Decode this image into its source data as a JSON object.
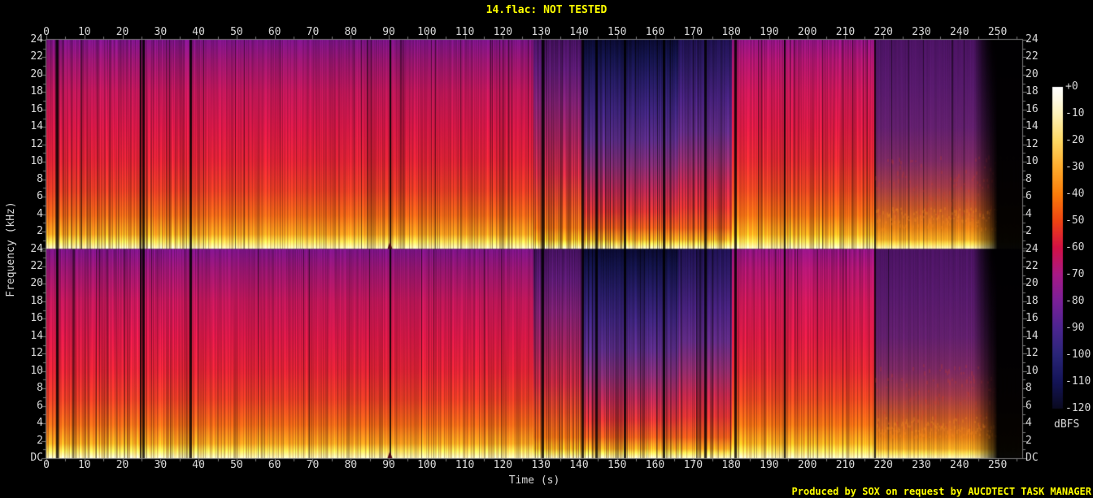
{
  "header": {
    "title": "14.flac: NOT TESTED"
  },
  "footer": {
    "attribution": "Produced by SOX on request by AUCDTECT TASK MANAGER"
  },
  "colors": {
    "background": "#000000",
    "title_text": "#ffff00",
    "attribution_text": "#ffff00",
    "axis_text": "#d8d8d8",
    "axis_line": "#787878"
  },
  "chart_data": {
    "type": "heatmap",
    "subtype": "audio-spectrogram-dual-channel",
    "title": "14.flac: NOT TESTED",
    "xlabel": "Time (s)",
    "ylabel": "Frequency (kHz)",
    "colorbar_unit": "dBFS",
    "channels": 2,
    "x_range_s": [
      0,
      256.5
    ],
    "x_tick_step_s": 10,
    "x_minor_tick_step_s": 5,
    "x_ticks": [
      0,
      10,
      20,
      30,
      40,
      50,
      60,
      70,
      80,
      90,
      100,
      110,
      120,
      130,
      140,
      150,
      160,
      170,
      180,
      190,
      200,
      210,
      220,
      230,
      240,
      250
    ],
    "y_range_khz": [
      0,
      24
    ],
    "y_ticks": [
      "24",
      "22",
      "20",
      "18",
      "16",
      "14",
      "12",
      "10",
      "8",
      "6",
      "4",
      "2",
      "DC"
    ],
    "colorbar_ticks": [
      "+0",
      "-10",
      "-20",
      "-30",
      "-40",
      "-50",
      "-60",
      "-70",
      "-80",
      "-90",
      "-100",
      "-110",
      "-120"
    ],
    "colorbar_gradient": [
      {
        "at": 0.0,
        "color": "#ffffff"
      },
      {
        "at": 0.042,
        "color": "#fffae2"
      },
      {
        "at": 0.083,
        "color": "#fff3bb"
      },
      {
        "at": 0.167,
        "color": "#ffd964"
      },
      {
        "at": 0.25,
        "color": "#ffac2d"
      },
      {
        "at": 0.333,
        "color": "#fb7d0a"
      },
      {
        "at": 0.417,
        "color": "#ef4412"
      },
      {
        "at": 0.5,
        "color": "#d31145"
      },
      {
        "at": 0.583,
        "color": "#a81a86"
      },
      {
        "at": 0.667,
        "color": "#7a2099"
      },
      {
        "at": 0.75,
        "color": "#4c2590"
      },
      {
        "at": 0.833,
        "color": "#2a2578"
      },
      {
        "at": 0.917,
        "color": "#141457"
      },
      {
        "at": 1.0,
        "color": "#0a0a20"
      }
    ],
    "profiles": {
      "hot": [
        [
          0,
          "#7a1486"
        ],
        [
          0.1,
          "#96166f"
        ],
        [
          0.25,
          "#bb1757"
        ],
        [
          0.42,
          "#d01845"
        ],
        [
          0.58,
          "#d92234"
        ],
        [
          0.72,
          "#de3b24"
        ],
        [
          0.84,
          "#e76417"
        ],
        [
          0.93,
          "#f59c1e"
        ],
        [
          0.965,
          "#ffd84f"
        ],
        [
          1,
          "#fff4bb"
        ]
      ],
      "hot2": [
        [
          0,
          "#8e1482"
        ],
        [
          0.1,
          "#ac166e"
        ],
        [
          0.25,
          "#c61856"
        ],
        [
          0.42,
          "#d41a42"
        ],
        [
          0.58,
          "#da2830"
        ],
        [
          0.72,
          "#e04420"
        ],
        [
          0.84,
          "#ec6c14"
        ],
        [
          0.93,
          "#f8a81e"
        ],
        [
          0.965,
          "#ffd84f"
        ],
        [
          1,
          "#fff4bb"
        ]
      ],
      "purple_mix": [
        [
          0,
          "#45125f"
        ],
        [
          0.14,
          "#5a1a72"
        ],
        [
          0.3,
          "#7c2070"
        ],
        [
          0.48,
          "#a02258"
        ],
        [
          0.64,
          "#c22840"
        ],
        [
          0.78,
          "#d64824"
        ],
        [
          0.9,
          "#ea6e14"
        ],
        [
          0.955,
          "#f8a81e"
        ],
        [
          0.975,
          "#ffd84f"
        ],
        [
          1,
          "#fff4bb"
        ]
      ],
      "quiet_dark": [
        [
          0,
          "#0b0b32"
        ],
        [
          0.08,
          "#131347"
        ],
        [
          0.2,
          "#251b61"
        ],
        [
          0.34,
          "#3c2378"
        ],
        [
          0.48,
          "#562a80"
        ],
        [
          0.6,
          "#7b2a6e"
        ],
        [
          0.72,
          "#ab264e"
        ],
        [
          0.82,
          "#cc3030"
        ],
        [
          0.9,
          "#e0581a"
        ],
        [
          0.955,
          "#f5a01e"
        ],
        [
          0.975,
          "#ffd84f"
        ],
        [
          1,
          "#fff4bb"
        ]
      ],
      "quiet_dark2": [
        [
          0,
          "#201252"
        ],
        [
          0.12,
          "#2d1a62"
        ],
        [
          0.28,
          "#45217a"
        ],
        [
          0.44,
          "#5e2a80"
        ],
        [
          0.58,
          "#8a2a68"
        ],
        [
          0.7,
          "#b82648"
        ],
        [
          0.8,
          "#d03030"
        ],
        [
          0.9,
          "#e0581a"
        ],
        [
          0.955,
          "#f5a01e"
        ],
        [
          0.975,
          "#ffd84f"
        ],
        [
          1,
          "#fff4bb"
        ]
      ],
      "outro": [
        [
          0,
          "#4c1464"
        ],
        [
          0.22,
          "#571a6c"
        ],
        [
          0.42,
          "#63206e"
        ],
        [
          0.58,
          "#7c2a62"
        ],
        [
          0.7,
          "#a03a48"
        ],
        [
          0.8,
          "#c05428"
        ],
        [
          0.9,
          "#e07c16"
        ],
        [
          0.955,
          "#f2a822"
        ],
        [
          0.975,
          "#ffd84f"
        ],
        [
          1,
          "#fff4bb"
        ]
      ]
    },
    "segments": [
      {
        "t0": 0,
        "t1": 40,
        "profile": "hot",
        "stripe": 0.55,
        "dark_prob": 0.05
      },
      {
        "t0": 40,
        "t1": 128,
        "profile": "hot",
        "stripe": 0.38,
        "dark_prob": 0.03
      },
      {
        "t0": 128,
        "t1": 141,
        "profile": "purple_mix",
        "stripe": 0.6,
        "dark_prob": 0.09
      },
      {
        "t0": 141,
        "t1": 166,
        "profile": "quiet_dark",
        "stripe": 0.55,
        "dark_prob": 0.07
      },
      {
        "t0": 166,
        "t1": 180,
        "profile": "quiet_dark2",
        "stripe": 0.5,
        "dark_prob": 0.05
      },
      {
        "t0": 180,
        "t1": 218,
        "profile": "hot2",
        "stripe": 0.45,
        "dark_prob": 0.04
      },
      {
        "t0": 218,
        "t1": 243.5,
        "profile": "outro",
        "stripe": 0.22,
        "dark_prob": 0.02
      },
      {
        "t0": 243.5,
        "t1": 256.5,
        "profile": "outro",
        "stripe": 0.12,
        "dark_prob": 0
      }
    ],
    "dark_lines_s": [
      2.8,
      24.7,
      25.5,
      37.9,
      90.3,
      130.4,
      140.8,
      144.5,
      152.0,
      162.3,
      173.2,
      181.0,
      194.0,
      217.7
    ],
    "band_gap_s": 90.3,
    "fade_start_s": 243.5,
    "seeds": [
      7,
      13
    ]
  }
}
